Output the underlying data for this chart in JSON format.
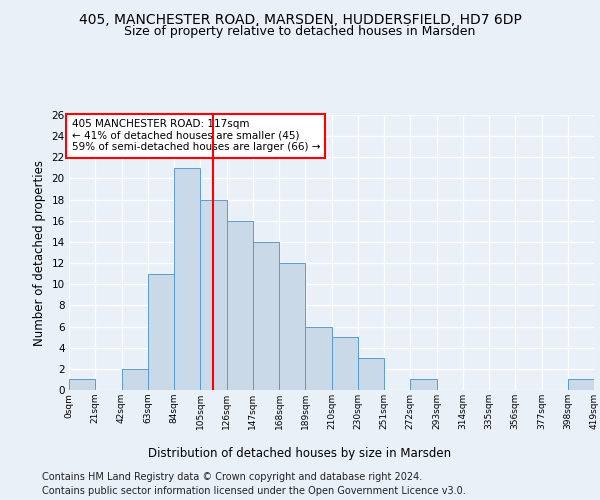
{
  "title1": "405, MANCHESTER ROAD, MARSDEN, HUDDERSFIELD, HD7 6DP",
  "title2": "Size of property relative to detached houses in Marsden",
  "xlabel": "Distribution of detached houses by size in Marsden",
  "ylabel": "Number of detached properties",
  "footer1": "Contains HM Land Registry data © Crown copyright and database right 2024.",
  "footer2": "Contains public sector information licensed under the Open Government Licence v3.0.",
  "bin_labels": [
    "0sqm",
    "21sqm",
    "42sqm",
    "63sqm",
    "84sqm",
    "105sqm",
    "126sqm",
    "147sqm",
    "168sqm",
    "189sqm",
    "210sqm",
    "230sqm",
    "251sqm",
    "272sqm",
    "293sqm",
    "314sqm",
    "335sqm",
    "356sqm",
    "377sqm",
    "398sqm",
    "419sqm"
  ],
  "bar_heights": [
    1,
    0,
    2,
    11,
    21,
    18,
    16,
    14,
    12,
    6,
    5,
    3,
    0,
    1,
    0,
    0,
    0,
    0,
    0,
    1
  ],
  "bar_color": "#c9d9e8",
  "bar_edge_color": "#5b9bd5",
  "vline_x": 5.5,
  "vline_color": "red",
  "annotation_text": "405 MANCHESTER ROAD: 117sqm\n← 41% of detached houses are smaller (45)\n59% of semi-detached houses are larger (66) →",
  "annotation_box_color": "white",
  "annotation_box_edge_color": "red",
  "ylim": [
    0,
    26
  ],
  "yticks": [
    0,
    2,
    4,
    6,
    8,
    10,
    12,
    14,
    16,
    18,
    20,
    22,
    24,
    26
  ],
  "bg_color": "#eaf0f7",
  "plot_bg_color": "#eaf0f7",
  "grid_color": "white",
  "title1_fontsize": 10,
  "title2_fontsize": 9,
  "xlabel_fontsize": 8.5,
  "ylabel_fontsize": 8.5,
  "footer_fontsize": 7,
  "annot_fontsize": 7.5
}
